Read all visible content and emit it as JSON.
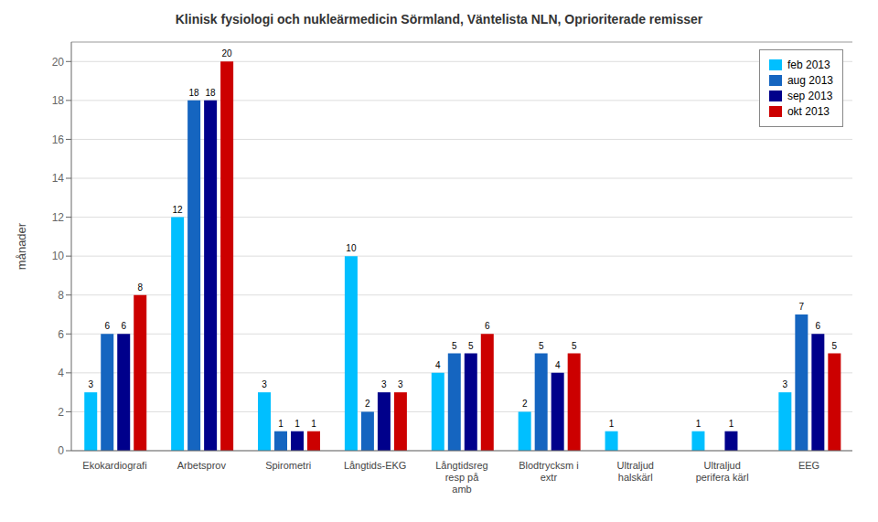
{
  "chart_data": {
    "type": "bar",
    "title": "Klinisk fysiologi och nukleärmedicin Sörmland, Väntelista NLN, Oprioriterade remisser",
    "ylabel": "månader",
    "categories": [
      "Ekokardiografi",
      "Arbetsprov",
      "Spirometri",
      "Långtids-EKG",
      "Långtidsreg resp på\namb",
      "Blodtrycksm i extr",
      "Ultraljud halskärl",
      "Ultraljud perifera kärl",
      "EEG"
    ],
    "series": [
      {
        "name": "feb 2013",
        "color": "#00BFFF",
        "values": [
          3,
          12,
          3,
          10,
          4,
          2,
          1,
          1,
          3
        ]
      },
      {
        "name": "aug 2013",
        "color": "#1565C0",
        "values": [
          6,
          18,
          1,
          2,
          5,
          5,
          0,
          0,
          7
        ]
      },
      {
        "name": "sep 2013",
        "color": "#00008B",
        "values": [
          6,
          18,
          1,
          3,
          5,
          4,
          0,
          1,
          6
        ]
      },
      {
        "name": "okt 2013",
        "color": "#CC0000",
        "values": [
          8,
          20,
          1,
          3,
          6,
          5,
          0,
          0,
          5
        ]
      }
    ],
    "ylim": [
      0,
      21
    ],
    "yticks": [
      0,
      2,
      4,
      6,
      8,
      10,
      12,
      14,
      16,
      18,
      20
    ],
    "grid": true,
    "legend": "upper right",
    "data_labels": true
  }
}
